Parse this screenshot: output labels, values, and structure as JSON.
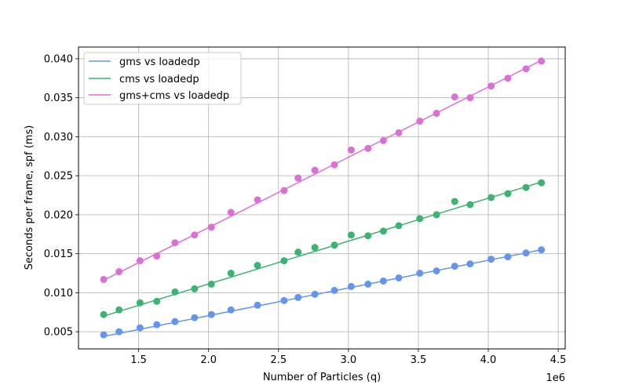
{
  "chart_data": {
    "type": "scatter",
    "xlabel": "Number of Particles (q)",
    "ylabel": "Seconds per frame, spf (ms)",
    "x_offset_label": "1e6",
    "xlim": [
      1.07,
      4.55
    ],
    "ylim": [
      0.0028,
      0.0415
    ],
    "x_scale_factor": 1000000,
    "x_ticks": [
      1.5,
      2.0,
      2.5,
      3.0,
      3.5,
      4.0,
      4.5
    ],
    "x_tick_labels": [
      "1.5",
      "2.0",
      "2.5",
      "3.0",
      "3.5",
      "4.0",
      "4.5"
    ],
    "y_ticks": [
      0.005,
      0.01,
      0.015,
      0.02,
      0.025,
      0.03,
      0.035,
      0.04
    ],
    "y_tick_labels": [
      "0.005",
      "0.010",
      "0.015",
      "0.020",
      "0.025",
      "0.030",
      "0.035",
      "0.040"
    ],
    "grid": true,
    "legend_position": "top-left",
    "x": [
      1.25,
      1.36,
      1.51,
      1.63,
      1.76,
      1.9,
      2.02,
      2.16,
      2.35,
      2.54,
      2.64,
      2.76,
      2.9,
      3.02,
      3.14,
      3.25,
      3.36,
      3.51,
      3.63,
      3.76,
      3.87,
      4.02,
      4.14,
      4.27,
      4.38
    ],
    "series": [
      {
        "name": "gms vs loadedp",
        "color": "#6495ED",
        "values": [
          0.0046,
          0.005,
          0.0055,
          0.0059,
          0.0063,
          0.0068,
          0.0072,
          0.0078,
          0.0084,
          0.009,
          0.0094,
          0.0098,
          0.0103,
          0.0108,
          0.0111,
          0.0115,
          0.0119,
          0.0125,
          0.0128,
          0.0134,
          0.0137,
          0.0143,
          0.0146,
          0.0151,
          0.0155
        ],
        "fit": [
          [
            1.25,
            0.0044
          ],
          [
            4.38,
            0.0155
          ]
        ]
      },
      {
        "name": "cms vs loadedp",
        "color": "#3CB371",
        "values": [
          0.0072,
          0.0078,
          0.0087,
          0.0089,
          0.0101,
          0.0105,
          0.0111,
          0.0125,
          0.0135,
          0.0141,
          0.0152,
          0.0158,
          0.0161,
          0.0174,
          0.0173,
          0.0179,
          0.0186,
          0.0195,
          0.02,
          0.0217,
          0.0213,
          0.0222,
          0.0227,
          0.0235,
          0.0241
        ],
        "fit": [
          [
            1.25,
            0.007
          ],
          [
            4.38,
            0.0242
          ]
        ]
      },
      {
        "name": "gms+cms vs loadedp",
        "color": "#DA70D6",
        "values": [
          0.0117,
          0.0127,
          0.0141,
          0.0147,
          0.0164,
          0.0174,
          0.0184,
          0.0203,
          0.0219,
          0.0231,
          0.0247,
          0.0257,
          0.0264,
          0.0283,
          0.0285,
          0.0295,
          0.0305,
          0.032,
          0.033,
          0.0351,
          0.035,
          0.0365,
          0.0375,
          0.0387,
          0.0397
        ],
        "fit": [
          [
            1.25,
            0.0116
          ],
          [
            4.38,
            0.0398
          ]
        ]
      }
    ]
  }
}
